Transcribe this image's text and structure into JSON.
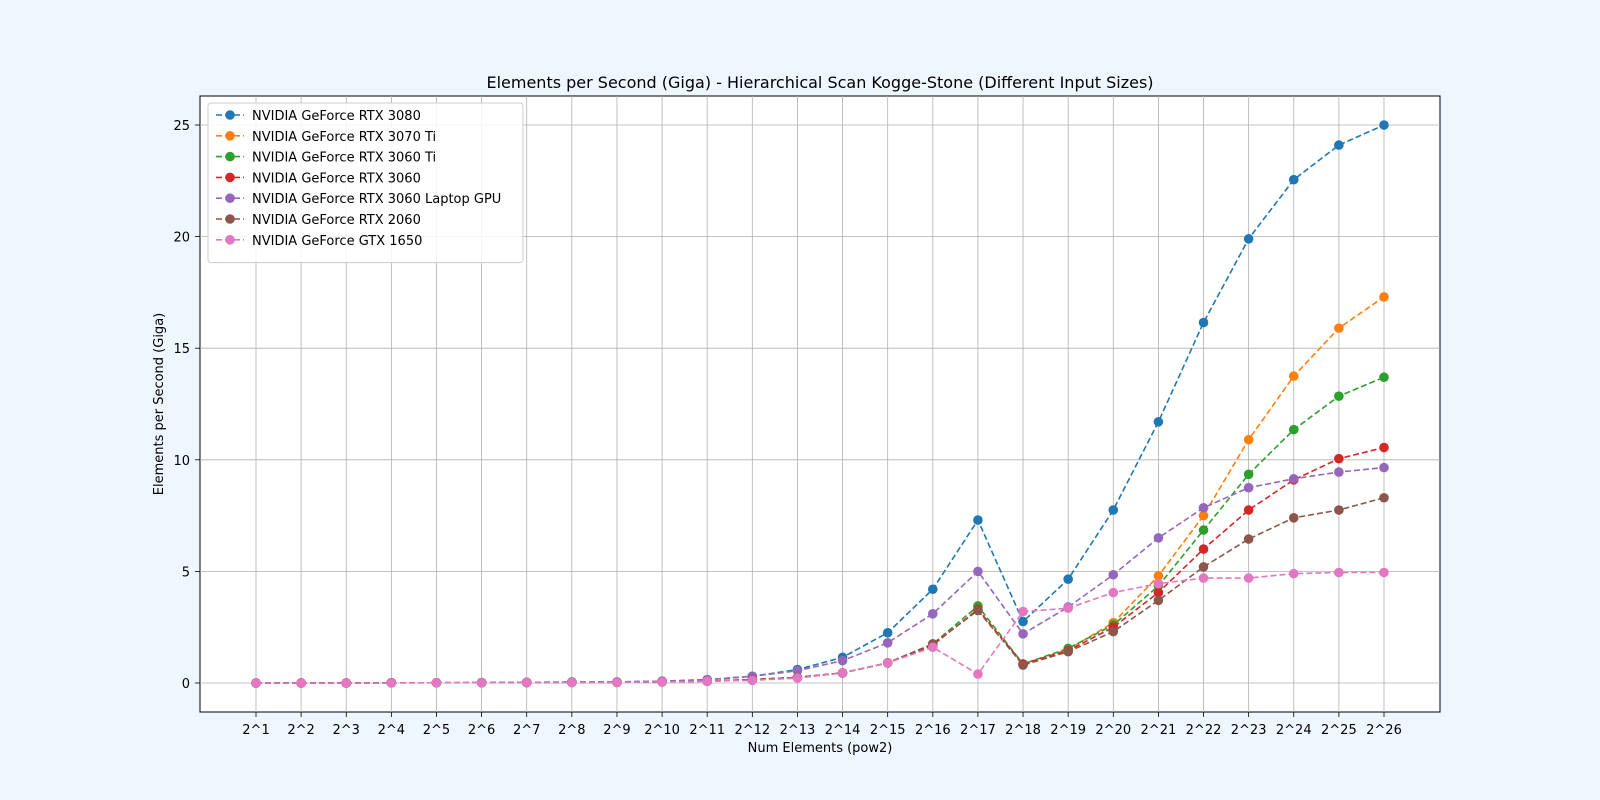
{
  "chart_data": {
    "type": "line",
    "title": "Elements per Second (Giga) - Hierarchical Scan Kogge-Stone (Different Input Sizes)",
    "xlabel": "Num Elements (pow2)",
    "ylabel": "Elements per Second (Giga)",
    "categories": [
      "2^1",
      "2^2",
      "2^3",
      "2^4",
      "2^5",
      "2^6",
      "2^7",
      "2^8",
      "2^9",
      "2^10",
      "2^11",
      "2^12",
      "2^13",
      "2^14",
      "2^15",
      "2^16",
      "2^17",
      "2^18",
      "2^19",
      "2^20",
      "2^21",
      "2^22",
      "2^23",
      "2^24",
      "2^25",
      "2^26"
    ],
    "yticks": [
      0,
      5,
      10,
      15,
      20,
      25
    ],
    "ylim": [
      -1.3,
      26.3
    ],
    "grid": true,
    "legend_position": "upper-left",
    "line_style": "dashed",
    "marker": "circle",
    "series": [
      {
        "name": "NVIDIA GeForce RTX 3080",
        "color": "#1f77b4",
        "values": [
          0.0,
          0.0,
          0.0,
          0.01,
          0.01,
          0.02,
          0.03,
          0.04,
          0.05,
          0.08,
          0.15,
          0.3,
          0.6,
          1.15,
          2.25,
          4.2,
          7.3,
          2.75,
          4.65,
          7.75,
          11.7,
          16.15,
          19.9,
          22.55,
          24.1,
          25.0
        ]
      },
      {
        "name": "NVIDIA GeForce RTX 3070 Ti",
        "color": "#ff7f0e",
        "values": [
          0.0,
          0.0,
          0.0,
          0.01,
          0.01,
          0.01,
          0.02,
          0.03,
          0.03,
          0.05,
          0.08,
          0.15,
          0.25,
          0.45,
          0.9,
          1.7,
          3.3,
          0.85,
          1.5,
          2.7,
          4.8,
          7.5,
          10.9,
          13.75,
          15.9,
          17.3
        ]
      },
      {
        "name": "NVIDIA GeForce RTX 3060 Ti",
        "color": "#2ca02c",
        "values": [
          0.0,
          0.0,
          0.0,
          0.01,
          0.01,
          0.01,
          0.02,
          0.03,
          0.03,
          0.05,
          0.08,
          0.15,
          0.25,
          0.45,
          0.9,
          1.75,
          3.45,
          0.85,
          1.55,
          2.6,
          4.35,
          6.85,
          9.35,
          11.35,
          12.85,
          13.7
        ]
      },
      {
        "name": "NVIDIA GeForce RTX 3060",
        "color": "#d62728",
        "values": [
          0.0,
          0.0,
          0.0,
          0.01,
          0.01,
          0.01,
          0.02,
          0.03,
          0.03,
          0.05,
          0.08,
          0.15,
          0.25,
          0.45,
          0.9,
          1.7,
          3.3,
          0.85,
          1.45,
          2.5,
          4.05,
          6.0,
          7.75,
          9.1,
          10.05,
          10.55
        ]
      },
      {
        "name": "NVIDIA GeForce RTX 3060 Laptop GPU",
        "color": "#9467bd",
        "values": [
          0.0,
          0.0,
          0.0,
          0.01,
          0.01,
          0.02,
          0.03,
          0.04,
          0.05,
          0.08,
          0.15,
          0.3,
          0.55,
          1.0,
          1.8,
          3.1,
          5.0,
          2.2,
          3.4,
          4.85,
          6.5,
          7.85,
          8.75,
          9.15,
          9.45,
          9.65
        ]
      },
      {
        "name": "NVIDIA GeForce RTX 2060",
        "color": "#8c564b",
        "values": [
          0.0,
          0.0,
          0.0,
          0.01,
          0.01,
          0.01,
          0.02,
          0.03,
          0.03,
          0.05,
          0.08,
          0.15,
          0.25,
          0.45,
          0.9,
          1.75,
          3.25,
          0.8,
          1.4,
          2.3,
          3.7,
          5.2,
          6.45,
          7.4,
          7.75,
          8.3
        ]
      },
      {
        "name": "NVIDIA GeForce GTX 1650",
        "color": "#e377c2",
        "values": [
          0.0,
          0.0,
          0.0,
          0.0,
          0.01,
          0.01,
          0.02,
          0.02,
          0.03,
          0.05,
          0.08,
          0.12,
          0.22,
          0.45,
          0.9,
          1.6,
          0.4,
          3.2,
          3.35,
          4.05,
          4.45,
          4.7,
          4.7,
          4.9,
          4.95,
          4.95
        ]
      }
    ]
  }
}
